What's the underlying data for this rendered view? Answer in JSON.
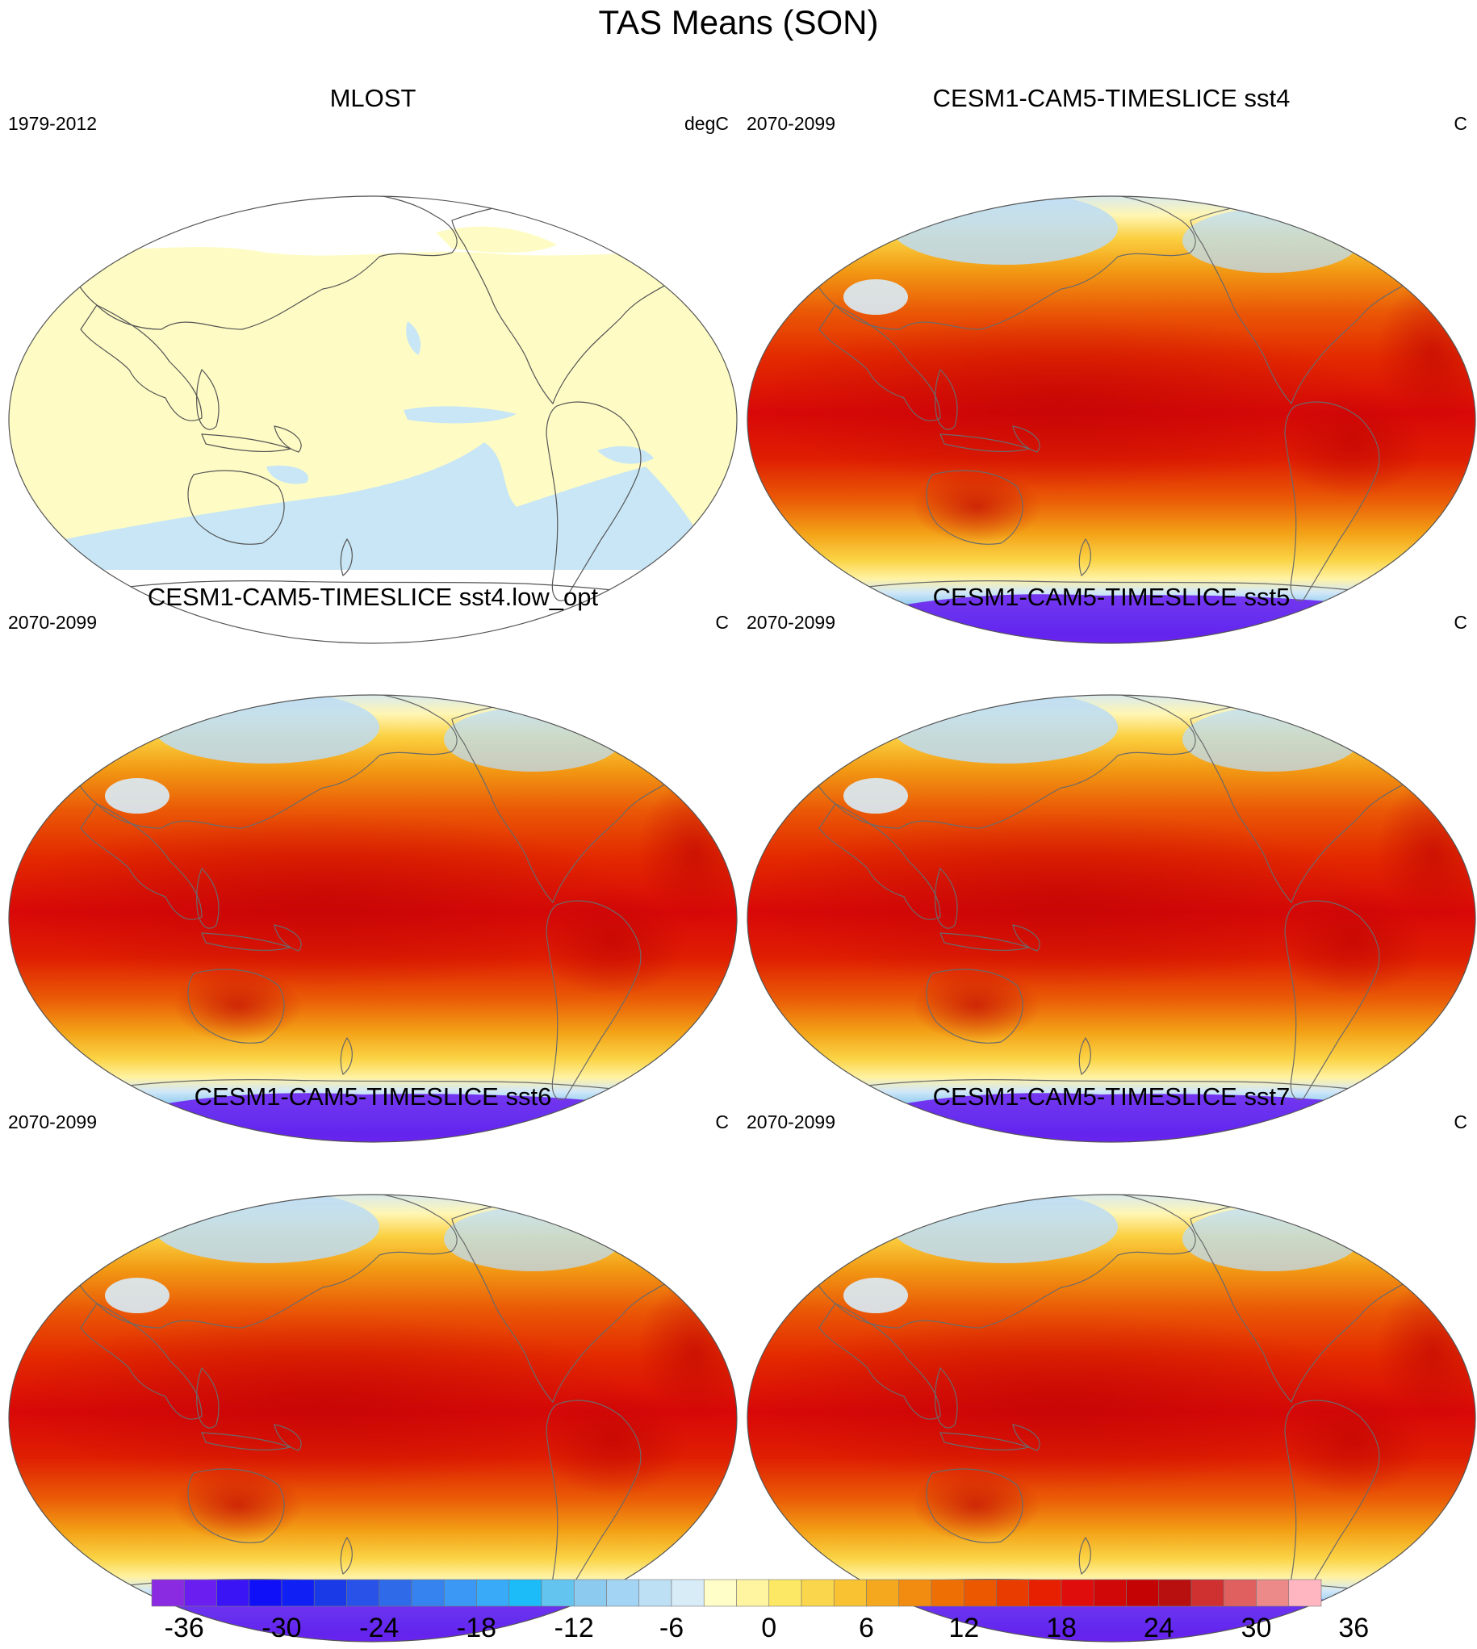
{
  "figure": {
    "title": "TAS Means (SON)"
  },
  "panels": [
    {
      "title": "MLOST",
      "left_label": "1979-2012",
      "right_label": "degC",
      "field": "observations-mlost"
    },
    {
      "title": "CESM1-CAM5-TIMESLICE sst4",
      "left_label": "2070-2099",
      "right_label": "C",
      "field": "model-climatology"
    },
    {
      "title": "CESM1-CAM5-TIMESLICE sst4.low_opt",
      "left_label": "2070-2099",
      "right_label": "C",
      "field": "model-climatology"
    },
    {
      "title": "CESM1-CAM5-TIMESLICE sst5",
      "left_label": "2070-2099",
      "right_label": "C",
      "field": "model-climatology"
    },
    {
      "title": "CESM1-CAM5-TIMESLICE sst6",
      "left_label": "2070-2099",
      "right_label": "C",
      "field": "model-climatology"
    },
    {
      "title": "CESM1-CAM5-TIMESLICE sst7",
      "left_label": "2070-2099",
      "right_label": "C",
      "field": "model-climatology"
    }
  ],
  "colorbar": {
    "tick_labels": [
      "-36",
      "-30",
      "-24",
      "-18",
      "-12",
      "-6",
      "0",
      "6",
      "12",
      "18",
      "24",
      "30",
      "36"
    ],
    "colors": [
      "#8a2be2",
      "#6a1ff0",
      "#3a14f5",
      "#1010f8",
      "#1020f5",
      "#1a3ae8",
      "#2852e8",
      "#2f6ae8",
      "#3682ee",
      "#3b98f5",
      "#38aaf8",
      "#1cbcf8",
      "#64c4f0",
      "#8ccaf0",
      "#a4d4f4",
      "#bde0f4",
      "#d8ecf8",
      "#fffdc8",
      "#fff5a0",
      "#fde866",
      "#fad64c",
      "#f8c232",
      "#f5a81e",
      "#f28c10",
      "#ee7004",
      "#eb5800",
      "#e83c00",
      "#e62000",
      "#e00d0d",
      "#d00808",
      "#c40404",
      "#b80f0f",
      "#cf3030",
      "#e06060",
      "#ec8a8a",
      "#ffb6c1"
    ]
  }
}
